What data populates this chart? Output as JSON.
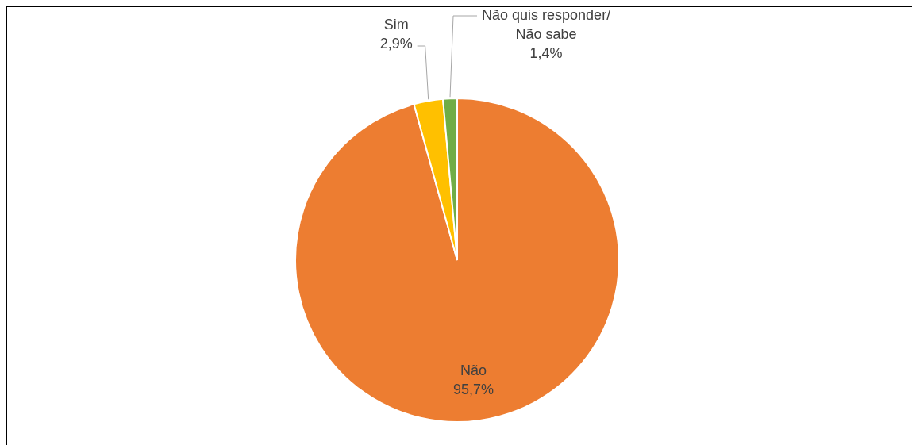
{
  "chart_data": {
    "type": "pie",
    "categories": [
      "Não",
      "Sim",
      "Não quis responder/ Não sabe"
    ],
    "values": [
      95.7,
      2.9,
      1.4
    ],
    "colors": [
      "#ed7d31",
      "#ffc000",
      "#70ad47"
    ],
    "value_labels": [
      "95,7%",
      "2,9%",
      "1,4%"
    ],
    "legend": false
  }
}
